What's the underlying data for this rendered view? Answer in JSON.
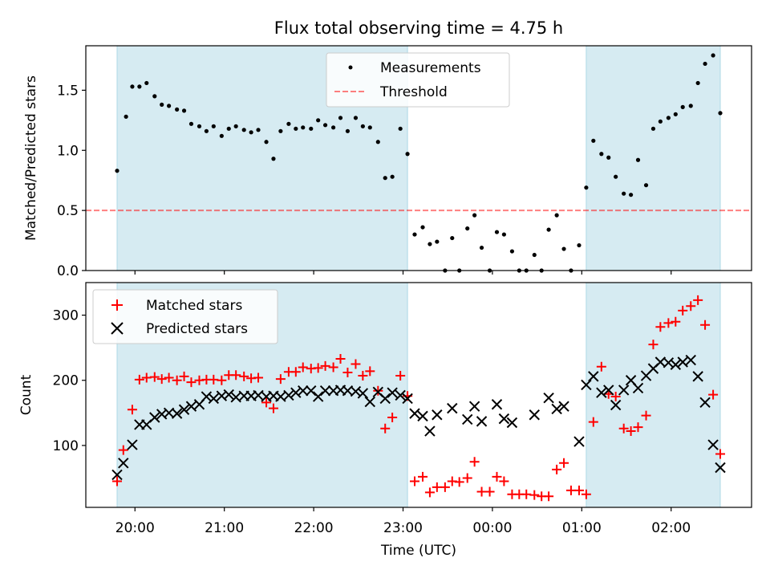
{
  "title": "Flux total observing time = 4.75 h",
  "colors": {
    "shade": "#add8e6",
    "threshold": "#ff0000",
    "measurement": "#000000",
    "matched": "#ff0000",
    "predicted": "#000000"
  },
  "chart_data": [
    {
      "type": "scatter",
      "ylabel": "Matched/Predicted stars",
      "xlabel": "",
      "ylim": [
        0,
        1.87
      ],
      "yticks": [
        0.0,
        0.5,
        1.0,
        1.5
      ],
      "ytick_labels": [
        "0.0",
        "0.5",
        "1.0",
        "1.5"
      ],
      "legend_position": "top-center",
      "legend": [
        "Measurements",
        "Threshold"
      ],
      "threshold": 0.5,
      "x_hours": [
        19.8,
        19.9,
        19.97,
        20.05,
        20.13,
        20.22,
        20.3,
        20.38,
        20.47,
        20.55,
        20.63,
        20.72,
        20.8,
        20.88,
        20.97,
        21.05,
        21.13,
        21.22,
        21.3,
        21.38,
        21.47,
        21.55,
        21.63,
        21.72,
        21.8,
        21.88,
        21.97,
        22.05,
        22.13,
        22.22,
        22.3,
        22.38,
        22.47,
        22.55,
        22.63,
        22.72,
        22.8,
        22.88,
        22.97,
        23.05,
        23.13,
        23.22,
        23.3,
        23.38,
        23.47,
        23.55,
        23.63,
        23.72,
        23.8,
        23.88,
        23.97,
        24.05,
        24.13,
        24.22,
        24.3,
        24.38,
        24.47,
        24.55,
        24.63,
        24.72,
        24.8,
        24.88,
        24.97,
        25.05,
        25.13,
        25.22,
        25.3,
        25.38,
        25.47,
        25.55,
        25.63,
        25.72,
        25.8,
        25.88,
        25.97,
        26.05,
        26.13,
        26.22,
        26.3,
        26.38,
        26.47,
        26.55
      ],
      "values": [
        0.83,
        1.28,
        1.53,
        1.53,
        1.56,
        1.45,
        1.38,
        1.37,
        1.34,
        1.33,
        1.22,
        1.2,
        1.16,
        1.2,
        1.12,
        1.18,
        1.2,
        1.17,
        1.15,
        1.17,
        1.07,
        0.93,
        1.16,
        1.22,
        1.18,
        1.19,
        1.18,
        1.25,
        1.21,
        1.19,
        1.27,
        1.16,
        1.27,
        1.2,
        1.19,
        1.07,
        0.77,
        0.78,
        1.18,
        0.97,
        0.3,
        0.36,
        0.22,
        0.24,
        0.0,
        0.27,
        0.0,
        0.35,
        0.46,
        0.19,
        0.0,
        0.32,
        0.3,
        0.16,
        0.0,
        0.0,
        0.13,
        0.0,
        0.34,
        0.46,
        0.18,
        0.0,
        0.21,
        0.69,
        1.08,
        0.97,
        0.94,
        0.78,
        0.64,
        0.63,
        0.92,
        0.71,
        1.18,
        1.24,
        1.27,
        1.3,
        1.36,
        1.37,
        1.56,
        1.72,
        1.79,
        1.31
      ],
      "shaded_regions": [
        [
          19.8,
          23.05
        ],
        [
          25.05,
          26.55
        ]
      ]
    },
    {
      "type": "scatter",
      "ylabel": "Count",
      "xlabel": "Time (UTC)",
      "ylim": [
        5,
        350
      ],
      "yticks": [
        100,
        200,
        300
      ],
      "ytick_labels": [
        "100",
        "200",
        "300"
      ],
      "xticks": [
        20,
        21,
        22,
        23,
        24,
        25,
        26
      ],
      "xtick_labels": [
        "20:00",
        "21:00",
        "22:00",
        "23:00",
        "00:00",
        "01:00",
        "02:00"
      ],
      "xlim": [
        19.45,
        26.9
      ],
      "legend_position": "top-left",
      "series": [
        {
          "name": "Matched stars",
          "marker": "plus",
          "x": [
            19.8,
            19.87,
            19.97,
            20.05,
            20.13,
            20.22,
            20.3,
            20.38,
            20.47,
            20.55,
            20.63,
            20.72,
            20.8,
            20.88,
            20.97,
            21.05,
            21.13,
            21.22,
            21.3,
            21.38,
            21.47,
            21.55,
            21.63,
            21.72,
            21.8,
            21.88,
            21.97,
            22.05,
            22.13,
            22.22,
            22.3,
            22.38,
            22.47,
            22.55,
            22.63,
            22.72,
            22.8,
            22.88,
            22.97,
            23.05,
            23.13,
            23.22,
            23.3,
            23.38,
            23.47,
            23.55,
            23.63,
            23.72,
            23.8,
            23.88,
            23.97,
            24.05,
            24.13,
            24.22,
            24.3,
            24.38,
            24.47,
            24.55,
            24.63,
            24.72,
            24.8,
            24.88,
            24.97,
            25.05,
            25.13,
            25.22,
            25.3,
            25.38,
            25.47,
            25.55,
            25.63,
            25.72,
            25.8,
            25.88,
            25.97,
            26.05,
            26.13,
            26.22,
            26.3,
            26.38,
            26.47,
            26.55
          ],
          "values": [
            45,
            93,
            155,
            201,
            204,
            205,
            202,
            204,
            200,
            206,
            197,
            200,
            201,
            201,
            200,
            208,
            208,
            206,
            203,
            204,
            166,
            157,
            202,
            213,
            213,
            220,
            218,
            219,
            222,
            220,
            233,
            212,
            225,
            207,
            214,
            184,
            126,
            143,
            207,
            176,
            45,
            52,
            28,
            36,
            36,
            45,
            44,
            50,
            75,
            29,
            29,
            52,
            45,
            25,
            25,
            25,
            24,
            22,
            22,
            63,
            73,
            31,
            31,
            25,
            136,
            221,
            179,
            175,
            126,
            122,
            128,
            146,
            255,
            282,
            288,
            290,
            307,
            314,
            323,
            285,
            178,
            87
          ]
        },
        {
          "name": "Predicted stars",
          "marker": "x",
          "x": [
            19.8,
            19.87,
            19.97,
            20.05,
            20.13,
            20.22,
            20.3,
            20.38,
            20.47,
            20.55,
            20.63,
            20.72,
            20.8,
            20.88,
            20.97,
            21.05,
            21.13,
            21.22,
            21.3,
            21.38,
            21.47,
            21.55,
            21.63,
            21.72,
            21.8,
            21.88,
            21.97,
            22.05,
            22.13,
            22.22,
            22.3,
            22.38,
            22.47,
            22.55,
            22.63,
            22.72,
            22.8,
            22.88,
            22.97,
            23.05,
            23.13,
            23.22,
            23.3,
            23.38,
            23.55,
            23.72,
            23.8,
            23.88,
            24.05,
            24.13,
            24.22,
            24.47,
            24.63,
            24.72,
            24.8,
            24.97,
            25.05,
            25.13,
            25.22,
            25.3,
            25.38,
            25.47,
            25.55,
            25.63,
            25.72,
            25.8,
            25.88,
            25.97,
            26.05,
            26.13,
            26.22,
            26.3,
            26.38,
            26.47,
            26.55
          ],
          "values": [
            55,
            73,
            101,
            132,
            132,
            143,
            148,
            150,
            149,
            155,
            160,
            163,
            175,
            172,
            176,
            178,
            174,
            176,
            176,
            177,
            175,
            176,
            175,
            177,
            181,
            184,
            184,
            175,
            184,
            184,
            185,
            184,
            183,
            180,
            167,
            182,
            172,
            181,
            177,
            172,
            149,
            145,
            122,
            147,
            157,
            140,
            160,
            137,
            163,
            141,
            135,
            147,
            173,
            156,
            160,
            106,
            193,
            206,
            181,
            185,
            162,
            185,
            200,
            188,
            207,
            218,
            228,
            227,
            224,
            228,
            231,
            206,
            166,
            101,
            66
          ]
        }
      ],
      "shaded_regions": [
        [
          19.8,
          23.05
        ],
        [
          25.05,
          26.55
        ]
      ]
    }
  ]
}
